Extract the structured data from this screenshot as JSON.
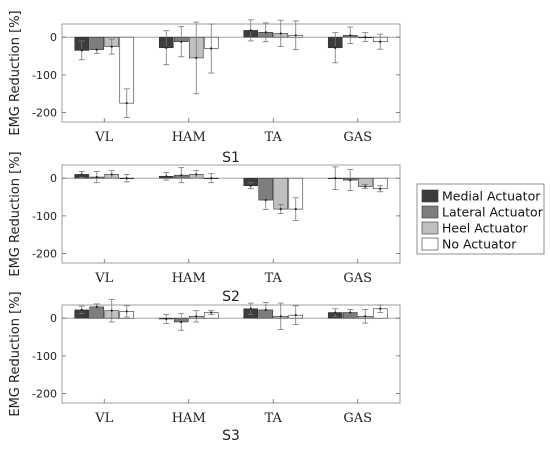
{
  "chart_data": {
    "type": "bar",
    "categories": [
      "VL",
      "HAM",
      "TA",
      "GAS"
    ],
    "ylabel": "EMG Reduction [%]",
    "ylim": [
      -225,
      35
    ],
    "yticks": [
      0,
      -100,
      -200
    ],
    "legend": {
      "placement": "right",
      "entries": [
        "Medial Actuator",
        "Lateral Actuator",
        "Heel Actuator",
        "No Actuator"
      ]
    },
    "colors": [
      "#3c3c3c",
      "#7e7e7e",
      "#c0c0c0",
      "#ffffff"
    ],
    "panels": [
      {
        "subject": "S1",
        "series": [
          {
            "name": "Medial Actuator",
            "values": [
              -35,
              -28,
              18,
              -28
            ],
            "errors": [
              25,
              45,
              28,
              40
            ]
          },
          {
            "name": "Lateral Actuator",
            "values": [
              -33,
              -12,
              13,
              5
            ],
            "errors": [
              10,
              40,
              25,
              22
            ]
          },
          {
            "name": "Heel Actuator",
            "values": [
              -25,
              -55,
              10,
              0
            ],
            "errors": [
              20,
              95,
              35,
              12
            ]
          },
          {
            "name": "No Actuator",
            "values": [
              -175,
              -30,
              5,
              -12
            ],
            "errors": [
              38,
              65,
              38,
              20
            ]
          }
        ]
      },
      {
        "subject": "S2",
        "series": [
          {
            "name": "Medial Actuator",
            "values": [
              10,
              5,
              -20,
              0
            ],
            "errors": [
              8,
              10,
              8,
              30
            ]
          },
          {
            "name": "Lateral Actuator",
            "values": [
              3,
              8,
              -58,
              -5
            ],
            "errors": [
              15,
              20,
              25,
              28
            ]
          },
          {
            "name": "Heel Actuator",
            "values": [
              10,
              10,
              -82,
              -22
            ],
            "errors": [
              10,
              10,
              12,
              5
            ]
          },
          {
            "name": "No Actuator",
            "values": [
              0,
              0,
              -82,
              -28
            ],
            "errors": [
              10,
              12,
              30,
              8
            ]
          }
        ]
      },
      {
        "subject": "S3",
        "series": [
          {
            "name": "Medial Actuator",
            "values": [
              22,
              -2,
              25,
              15
            ],
            "errors": [
              10,
              12,
              15,
              10
            ]
          },
          {
            "name": "Lateral Actuator",
            "values": [
              30,
              -10,
              22,
              15
            ],
            "errors": [
              8,
              22,
              20,
              8
            ]
          },
          {
            "name": "Heel Actuator",
            "values": [
              20,
              5,
              5,
              5
            ],
            "errors": [
              30,
              15,
              35,
              18
            ]
          },
          {
            "name": "No Actuator",
            "values": [
              18,
              15,
              8,
              25
            ],
            "errors": [
              15,
              5,
              25,
              10
            ]
          }
        ]
      }
    ]
  }
}
